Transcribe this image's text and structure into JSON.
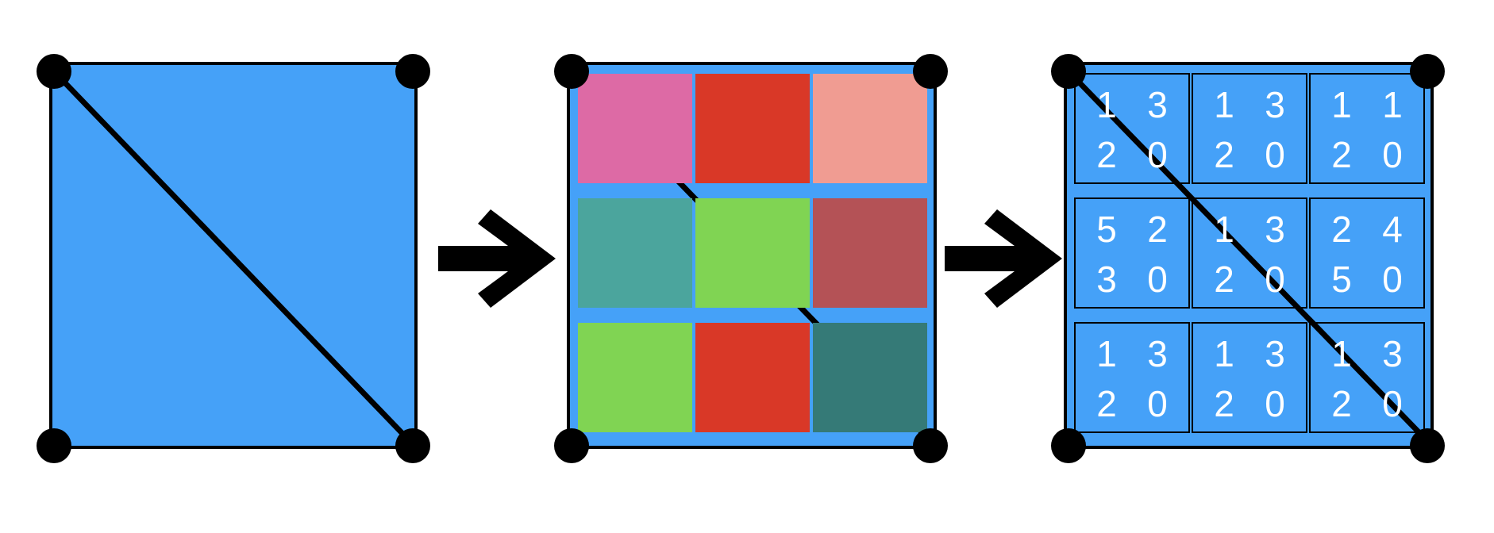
{
  "colors": {
    "background": "#ffffff",
    "panel_fill": "#45a1f8",
    "outline": "#000000",
    "vertex": "#000000",
    "arrow": "#000000",
    "number_text": "#ffffff"
  },
  "panels": [
    {
      "id": "input-square",
      "shape": "square split by one diagonal into two triangles",
      "vertex_count": 4
    },
    {
      "id": "color-grid",
      "shape": "3x3 grid of colored cells",
      "vertex_count": 4,
      "cells": [
        [
          "#dd6aa5",
          "#d93827",
          "#f09c92"
        ],
        [
          "#4ba59d",
          "#80d453",
          "#b45256"
        ],
        [
          "#80d453",
          "#d93827",
          "#357a77"
        ]
      ]
    },
    {
      "id": "number-grid",
      "shape": "3x3 grid of cells, each with a 2x2 block of numbers",
      "vertex_count": 4,
      "cells": [
        [
          {
            "tl": "1",
            "tr": "3",
            "bl": "2",
            "br": "0"
          },
          {
            "tl": "1",
            "tr": "3",
            "bl": "2",
            "br": "0"
          },
          {
            "tl": "1",
            "tr": "1",
            "bl": "2",
            "br": "0"
          }
        ],
        [
          {
            "tl": "5",
            "tr": "2",
            "bl": "3",
            "br": "0"
          },
          {
            "tl": "1",
            "tr": "3",
            "bl": "2",
            "br": "0"
          },
          {
            "tl": "2",
            "tr": "4",
            "bl": "5",
            "br": "0"
          }
        ],
        [
          {
            "tl": "1",
            "tr": "3",
            "bl": "2",
            "br": "0"
          },
          {
            "tl": "1",
            "tr": "3",
            "bl": "2",
            "br": "0"
          },
          {
            "tl": "1",
            "tr": "3",
            "bl": "2",
            "br": "0"
          }
        ]
      ]
    }
  ],
  "arrows": [
    {
      "from": "input-square",
      "to": "color-grid"
    },
    {
      "from": "color-grid",
      "to": "number-grid"
    }
  ]
}
